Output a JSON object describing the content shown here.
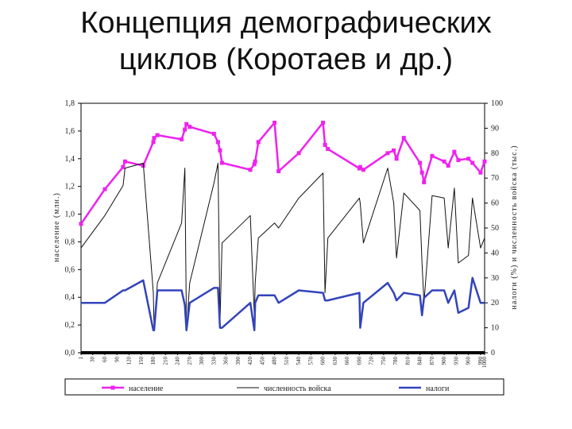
{
  "slide": {
    "title": "Концепция демографических\nциклов (Коротаев и др.)"
  },
  "chart_data": {
    "type": "line",
    "x": [
      1,
      60,
      105,
      110,
      155,
      180,
      182,
      190,
      250,
      258,
      262,
      270,
      330,
      340,
      345,
      350,
      420,
      430,
      432,
      440,
      480,
      490,
      540,
      600,
      605,
      612,
      690,
      692,
      700,
      760,
      775,
      782,
      800,
      840,
      845,
      850,
      870,
      900,
      910,
      925,
      935,
      960,
      970,
      990,
      1000
    ],
    "x_tick_labels": [
      "1",
      "30",
      "60",
      "90",
      "120",
      "150",
      "180",
      "210",
      "240",
      "270",
      "300",
      "330",
      "360",
      "390",
      "420",
      "450",
      "480",
      "510",
      "540",
      "570",
      "600",
      "630",
      "660",
      "690",
      "720",
      "750",
      "780",
      "810",
      "840",
      "870",
      "900",
      "930",
      "960",
      "990",
      "1000"
    ],
    "xlim": [
      1,
      1000
    ],
    "ylim": [
      0,
      1.8
    ],
    "y_ticks": [
      "0,0",
      "0,2",
      "0,4",
      "0,6",
      "0,8",
      "1,0",
      "1,2",
      "1,4",
      "1,6",
      "1,8"
    ],
    "y2lim": [
      0,
      100
    ],
    "y2_ticks": [
      "0",
      "10",
      "20",
      "30",
      "40",
      "50",
      "60",
      "70",
      "80",
      "90",
      "100"
    ],
    "ylabel": "население (млн.)",
    "y2label": "налоги (%) и численность войска (тыс.)",
    "legend_position": "bottom",
    "series": [
      {
        "name": "население",
        "axis": "left",
        "color": "#ee22ee",
        "marker": "square",
        "values": [
          0.93,
          1.18,
          1.34,
          1.38,
          1.35,
          1.52,
          1.55,
          1.57,
          1.54,
          1.61,
          1.65,
          1.63,
          1.58,
          1.52,
          1.46,
          1.37,
          1.32,
          1.36,
          1.38,
          1.52,
          1.66,
          1.31,
          1.44,
          1.66,
          1.5,
          1.47,
          1.33,
          1.34,
          1.32,
          1.44,
          1.46,
          1.4,
          1.55,
          1.37,
          1.3,
          1.23,
          1.42,
          1.38,
          1.35,
          1.45,
          1.39,
          1.4,
          1.37,
          1.3,
          1.38
        ]
      },
      {
        "name": "численность войска",
        "axis": "right",
        "color": "#111111",
        "values": [
          42,
          55,
          67,
          74,
          76,
          24,
          9,
          28,
          52,
          74,
          9,
          28,
          68,
          76,
          12,
          44,
          55,
          14,
          28,
          46,
          52,
          50,
          62,
          72,
          24,
          46,
          62,
          60,
          44,
          74,
          60,
          38,
          64,
          57,
          36,
          20,
          63,
          62,
          42,
          66,
          36,
          39,
          62,
          42,
          46
        ]
      },
      {
        "name": "налоги",
        "axis": "right",
        "color": "#3344bb",
        "values": [
          20,
          20,
          25,
          25,
          29,
          9,
          9,
          25,
          25,
          19,
          9,
          20,
          26,
          26,
          10,
          10,
          20,
          9,
          20,
          23,
          23,
          20,
          25,
          24,
          21,
          21,
          24,
          10,
          20,
          28,
          24,
          21,
          24,
          23,
          15,
          22,
          25,
          25,
          20,
          25,
          16,
          18,
          30,
          20,
          20
        ]
      }
    ]
  }
}
